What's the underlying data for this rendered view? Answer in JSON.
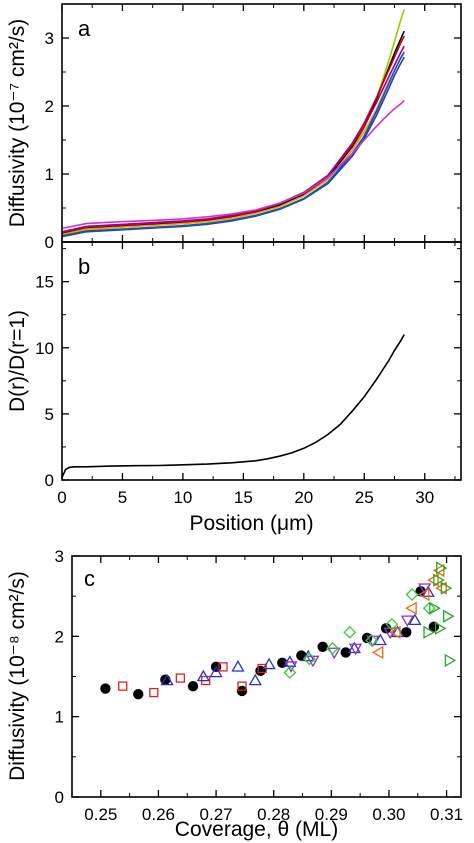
{
  "chart_data": [
    {
      "panel": "a",
      "type": "line",
      "panel_label": "a",
      "ylabel": "Diffusivity (10⁻⁷ cm²/s)",
      "xlim": [
        0,
        33
      ],
      "ylim": [
        0,
        3.5
      ],
      "yticks": [
        "0",
        "1",
        "2",
        "3"
      ],
      "series": [
        {
          "color": "#99cc00",
          "x": [
            0,
            2,
            5,
            8,
            10,
            12,
            14,
            16,
            18,
            20,
            22,
            24,
            25,
            26,
            27,
            27.5,
            28,
            28.3
          ],
          "y": [
            0.1,
            0.18,
            0.22,
            0.25,
            0.27,
            0.3,
            0.35,
            0.42,
            0.52,
            0.68,
            0.92,
            1.35,
            1.68,
            2.1,
            2.65,
            2.95,
            3.25,
            3.42
          ]
        },
        {
          "color": "#000000",
          "x": [
            0,
            2,
            5,
            8,
            10,
            12,
            14,
            16,
            18,
            20,
            22,
            24,
            25,
            26,
            27,
            27.5,
            28,
            28.3
          ],
          "y": [
            0.12,
            0.2,
            0.23,
            0.26,
            0.28,
            0.31,
            0.36,
            0.43,
            0.54,
            0.7,
            0.95,
            1.4,
            1.7,
            2.1,
            2.55,
            2.78,
            2.98,
            3.1
          ]
        },
        {
          "color": "#cc0000",
          "x": [
            0,
            2,
            5,
            8,
            10,
            12,
            14,
            16,
            18,
            20,
            22,
            24,
            25,
            26,
            27,
            27.5,
            28,
            28.3
          ],
          "y": [
            0.14,
            0.22,
            0.25,
            0.28,
            0.3,
            0.33,
            0.38,
            0.45,
            0.56,
            0.72,
            0.98,
            1.45,
            1.75,
            2.12,
            2.52,
            2.72,
            2.92,
            3.03
          ]
        },
        {
          "color": "#990099",
          "x": [
            0,
            2,
            5,
            8,
            10,
            12,
            14,
            16,
            18,
            20,
            22,
            24,
            25,
            26,
            27,
            27.5,
            28,
            28.3
          ],
          "y": [
            0.15,
            0.23,
            0.26,
            0.29,
            0.31,
            0.34,
            0.39,
            0.46,
            0.57,
            0.73,
            0.98,
            1.42,
            1.7,
            2.05,
            2.42,
            2.6,
            2.78,
            2.88
          ]
        },
        {
          "color": "#ff9900",
          "x": [
            0,
            2,
            5,
            8,
            10,
            12,
            14,
            16,
            18,
            20,
            22,
            24,
            25,
            26,
            27,
            27.5,
            28,
            28.3
          ],
          "y": [
            0.11,
            0.19,
            0.22,
            0.25,
            0.27,
            0.3,
            0.35,
            0.42,
            0.52,
            0.68,
            0.92,
            1.35,
            1.62,
            1.95,
            2.35,
            2.52,
            2.7,
            2.8
          ]
        },
        {
          "color": "#3333cc",
          "x": [
            0,
            2,
            5,
            8,
            10,
            12,
            14,
            16,
            18,
            20,
            22,
            24,
            25,
            26,
            27,
            27.5,
            28,
            28.3
          ],
          "y": [
            0.08,
            0.15,
            0.18,
            0.21,
            0.23,
            0.26,
            0.31,
            0.38,
            0.48,
            0.63,
            0.86,
            1.26,
            1.52,
            1.86,
            2.25,
            2.45,
            2.62,
            2.72
          ]
        },
        {
          "color": "#006699",
          "x": [
            0,
            2,
            5,
            8,
            10,
            12,
            14,
            16,
            18,
            20,
            22,
            24,
            25,
            26,
            27,
            27.5,
            28,
            28.3
          ],
          "y": [
            0.09,
            0.16,
            0.19,
            0.22,
            0.24,
            0.27,
            0.32,
            0.39,
            0.49,
            0.64,
            0.88,
            1.3,
            1.56,
            1.92,
            2.32,
            2.52,
            2.7,
            2.79
          ]
        },
        {
          "color": "#cc33cc",
          "x": [
            0,
            2,
            5,
            8,
            10,
            12,
            14,
            16,
            18,
            20,
            22,
            24,
            25,
            26,
            27,
            27.5,
            28,
            28.3
          ],
          "y": [
            0.2,
            0.27,
            0.3,
            0.32,
            0.34,
            0.37,
            0.41,
            0.47,
            0.57,
            0.72,
            0.95,
            1.3,
            1.5,
            1.7,
            1.88,
            1.96,
            2.03,
            2.08
          ]
        }
      ]
    },
    {
      "panel": "b",
      "type": "line",
      "panel_label": "b",
      "xlabel": "Position (μm)",
      "ylabel": "D(r)/D(r=1)",
      "xlim": [
        0,
        33
      ],
      "ylim": [
        0,
        18
      ],
      "xticks": [
        "0",
        "5",
        "10",
        "15",
        "20",
        "25",
        "30"
      ],
      "yticks": [
        "0",
        "5",
        "10",
        "15"
      ],
      "series": [
        {
          "color": "#000000",
          "x": [
            0,
            0.3,
            0.6,
            1,
            2,
            4,
            6,
            8,
            9,
            10,
            12,
            14,
            15,
            16,
            17,
            18,
            19,
            20,
            21,
            22,
            23,
            24,
            25,
            26,
            27,
            27.5,
            28,
            28.3
          ],
          "y": [
            0.2,
            0.8,
            0.95,
            1.0,
            1.0,
            1.05,
            1.08,
            1.1,
            1.12,
            1.15,
            1.2,
            1.3,
            1.38,
            1.45,
            1.6,
            1.8,
            2.05,
            2.4,
            2.85,
            3.45,
            4.2,
            5.2,
            6.3,
            7.6,
            9.0,
            9.8,
            10.5,
            11.0
          ]
        }
      ]
    },
    {
      "panel": "c",
      "type": "scatter",
      "panel_label": "c",
      "xlabel": "Coverage, θ (ML)",
      "ylabel": "Diffusivity (10⁻⁸ cm²/s)",
      "xlim": [
        0.245,
        0.3125
      ],
      "ylim": [
        0,
        3
      ],
      "xticks": [
        "0.25",
        "0.26",
        "0.27",
        "0.28",
        "0.29",
        "0.30",
        "0.31"
      ],
      "yticks": [
        "0",
        "1",
        "2",
        "3"
      ],
      "series": [
        {
          "marker": "circle",
          "color": "#000000",
          "x": [
            0.2508,
            0.2565,
            0.2612,
            0.266,
            0.27,
            0.2745,
            0.2777,
            0.2815,
            0.2848,
            0.2885,
            0.2925,
            0.2962,
            0.2995,
            0.303,
            0.3055,
            0.3078
          ],
          "y": [
            1.35,
            1.28,
            1.46,
            1.38,
            1.62,
            1.32,
            1.57,
            1.67,
            1.76,
            1.87,
            1.8,
            1.98,
            2.1,
            2.05,
            2.56,
            2.12
          ]
        },
        {
          "marker": "square",
          "color": "#dd2222",
          "x": [
            0.2538,
            0.2592,
            0.2638,
            0.2682,
            0.2712,
            0.2745,
            0.278
          ],
          "y": [
            1.38,
            1.3,
            1.48,
            1.45,
            1.62,
            1.38,
            1.6
          ]
        },
        {
          "marker": "triangle-up",
          "color": "#2233cc",
          "x": [
            0.2615,
            0.2678,
            0.27,
            0.2738,
            0.2768,
            0.2792,
            0.2828,
            0.286,
            0.294,
            0.2985,
            0.3015,
            0.3045,
            0.3068
          ],
          "y": [
            1.45,
            1.5,
            1.55,
            1.62,
            1.45,
            1.65,
            1.68,
            1.75,
            1.85,
            1.95,
            2.05,
            2.2,
            2.55
          ]
        },
        {
          "marker": "triangle-down",
          "color": "#8833cc",
          "x": [
            0.283,
            0.2868,
            0.2905,
            0.2942,
            0.2972,
            0.3002,
            0.3032,
            0.3062
          ],
          "y": [
            1.63,
            1.7,
            1.8,
            1.85,
            1.95,
            2.05,
            2.2,
            2.6
          ]
        },
        {
          "marker": "diamond",
          "color": "#33cc33",
          "x": [
            0.2828,
            0.2862,
            0.2902,
            0.2932,
            0.297,
            0.3005,
            0.304,
            0.307
          ],
          "y": [
            1.55,
            1.72,
            1.85,
            2.05,
            1.95,
            2.15,
            2.52,
            2.35
          ]
        },
        {
          "marker": "triangle-left",
          "color": "#ee6611",
          "x": [
            0.2982,
            0.3012,
            0.304,
            0.3062,
            0.3078,
            0.3088,
            0.3092
          ],
          "y": [
            1.8,
            2.05,
            2.35,
            2.52,
            2.7,
            2.82,
            2.6
          ]
        },
        {
          "marker": "triangle-right",
          "color": "#22aa22",
          "x": [
            0.3068,
            0.3078,
            0.3085,
            0.309,
            0.3098,
            0.3102,
            0.3105,
            0.3088
          ],
          "y": [
            2.05,
            2.35,
            2.7,
            2.85,
            2.6,
            2.25,
            1.7,
            2.1
          ]
        }
      ]
    }
  ]
}
